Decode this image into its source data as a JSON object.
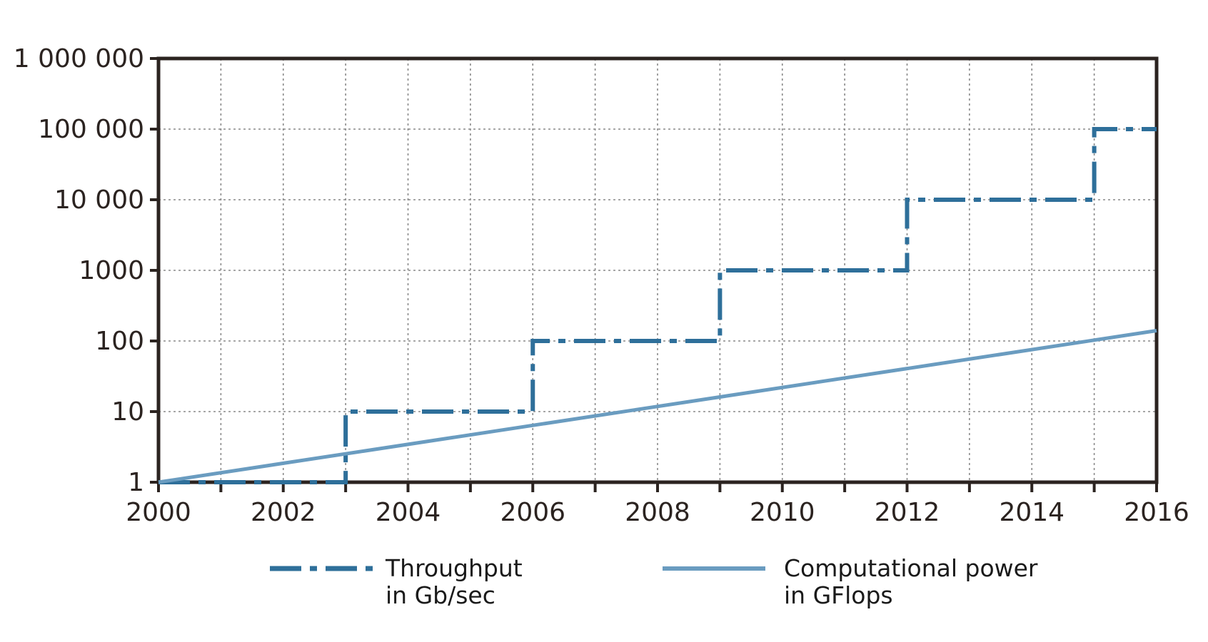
{
  "colors": {
    "throughput": "#2e6f9a",
    "computational": "#6a9cc0",
    "axis": "#2b2320",
    "grid": "#8a8a8a"
  },
  "chart_data": {
    "type": "line",
    "xlabel": "",
    "ylabel": "",
    "xlim": [
      2000,
      2016
    ],
    "ylim": [
      1,
      1000000
    ],
    "yscale": "log",
    "grid": true,
    "legend": "bottom",
    "x_ticks": [
      2000,
      2002,
      2004,
      2006,
      2008,
      2010,
      2012,
      2014,
      2016
    ],
    "x_tick_labels": [
      "2000",
      "2002",
      "2004",
      "2006",
      "2008",
      "2010",
      "2012",
      "2014",
      "2016"
    ],
    "y_ticks": [
      1,
      10,
      100,
      1000,
      10000,
      100000,
      1000000
    ],
    "y_tick_labels": [
      "1",
      "10",
      "100",
      "1000",
      "10 000",
      "100 000",
      "1 000 000"
    ],
    "series": [
      {
        "name": "Throughput in Gb/sec",
        "legend_lines": [
          "Throughput",
          "in Gb/sec"
        ],
        "style": "dash-dot step",
        "color": "#2e6f9a",
        "x": [
          2000,
          2003,
          2003,
          2006,
          2006,
          2009,
          2009,
          2012,
          2012,
          2015,
          2015,
          2016
        ],
        "y": [
          1,
          1,
          10,
          10,
          100,
          100,
          1000,
          1000,
          10000,
          10000,
          100000,
          100000
        ]
      },
      {
        "name": "Computational power in GFlops",
        "legend_lines": [
          "Computational power",
          "in GFlops"
        ],
        "style": "solid",
        "color": "#6a9cc0",
        "x": [
          2000,
          2016
        ],
        "y": [
          1,
          140
        ]
      }
    ]
  }
}
